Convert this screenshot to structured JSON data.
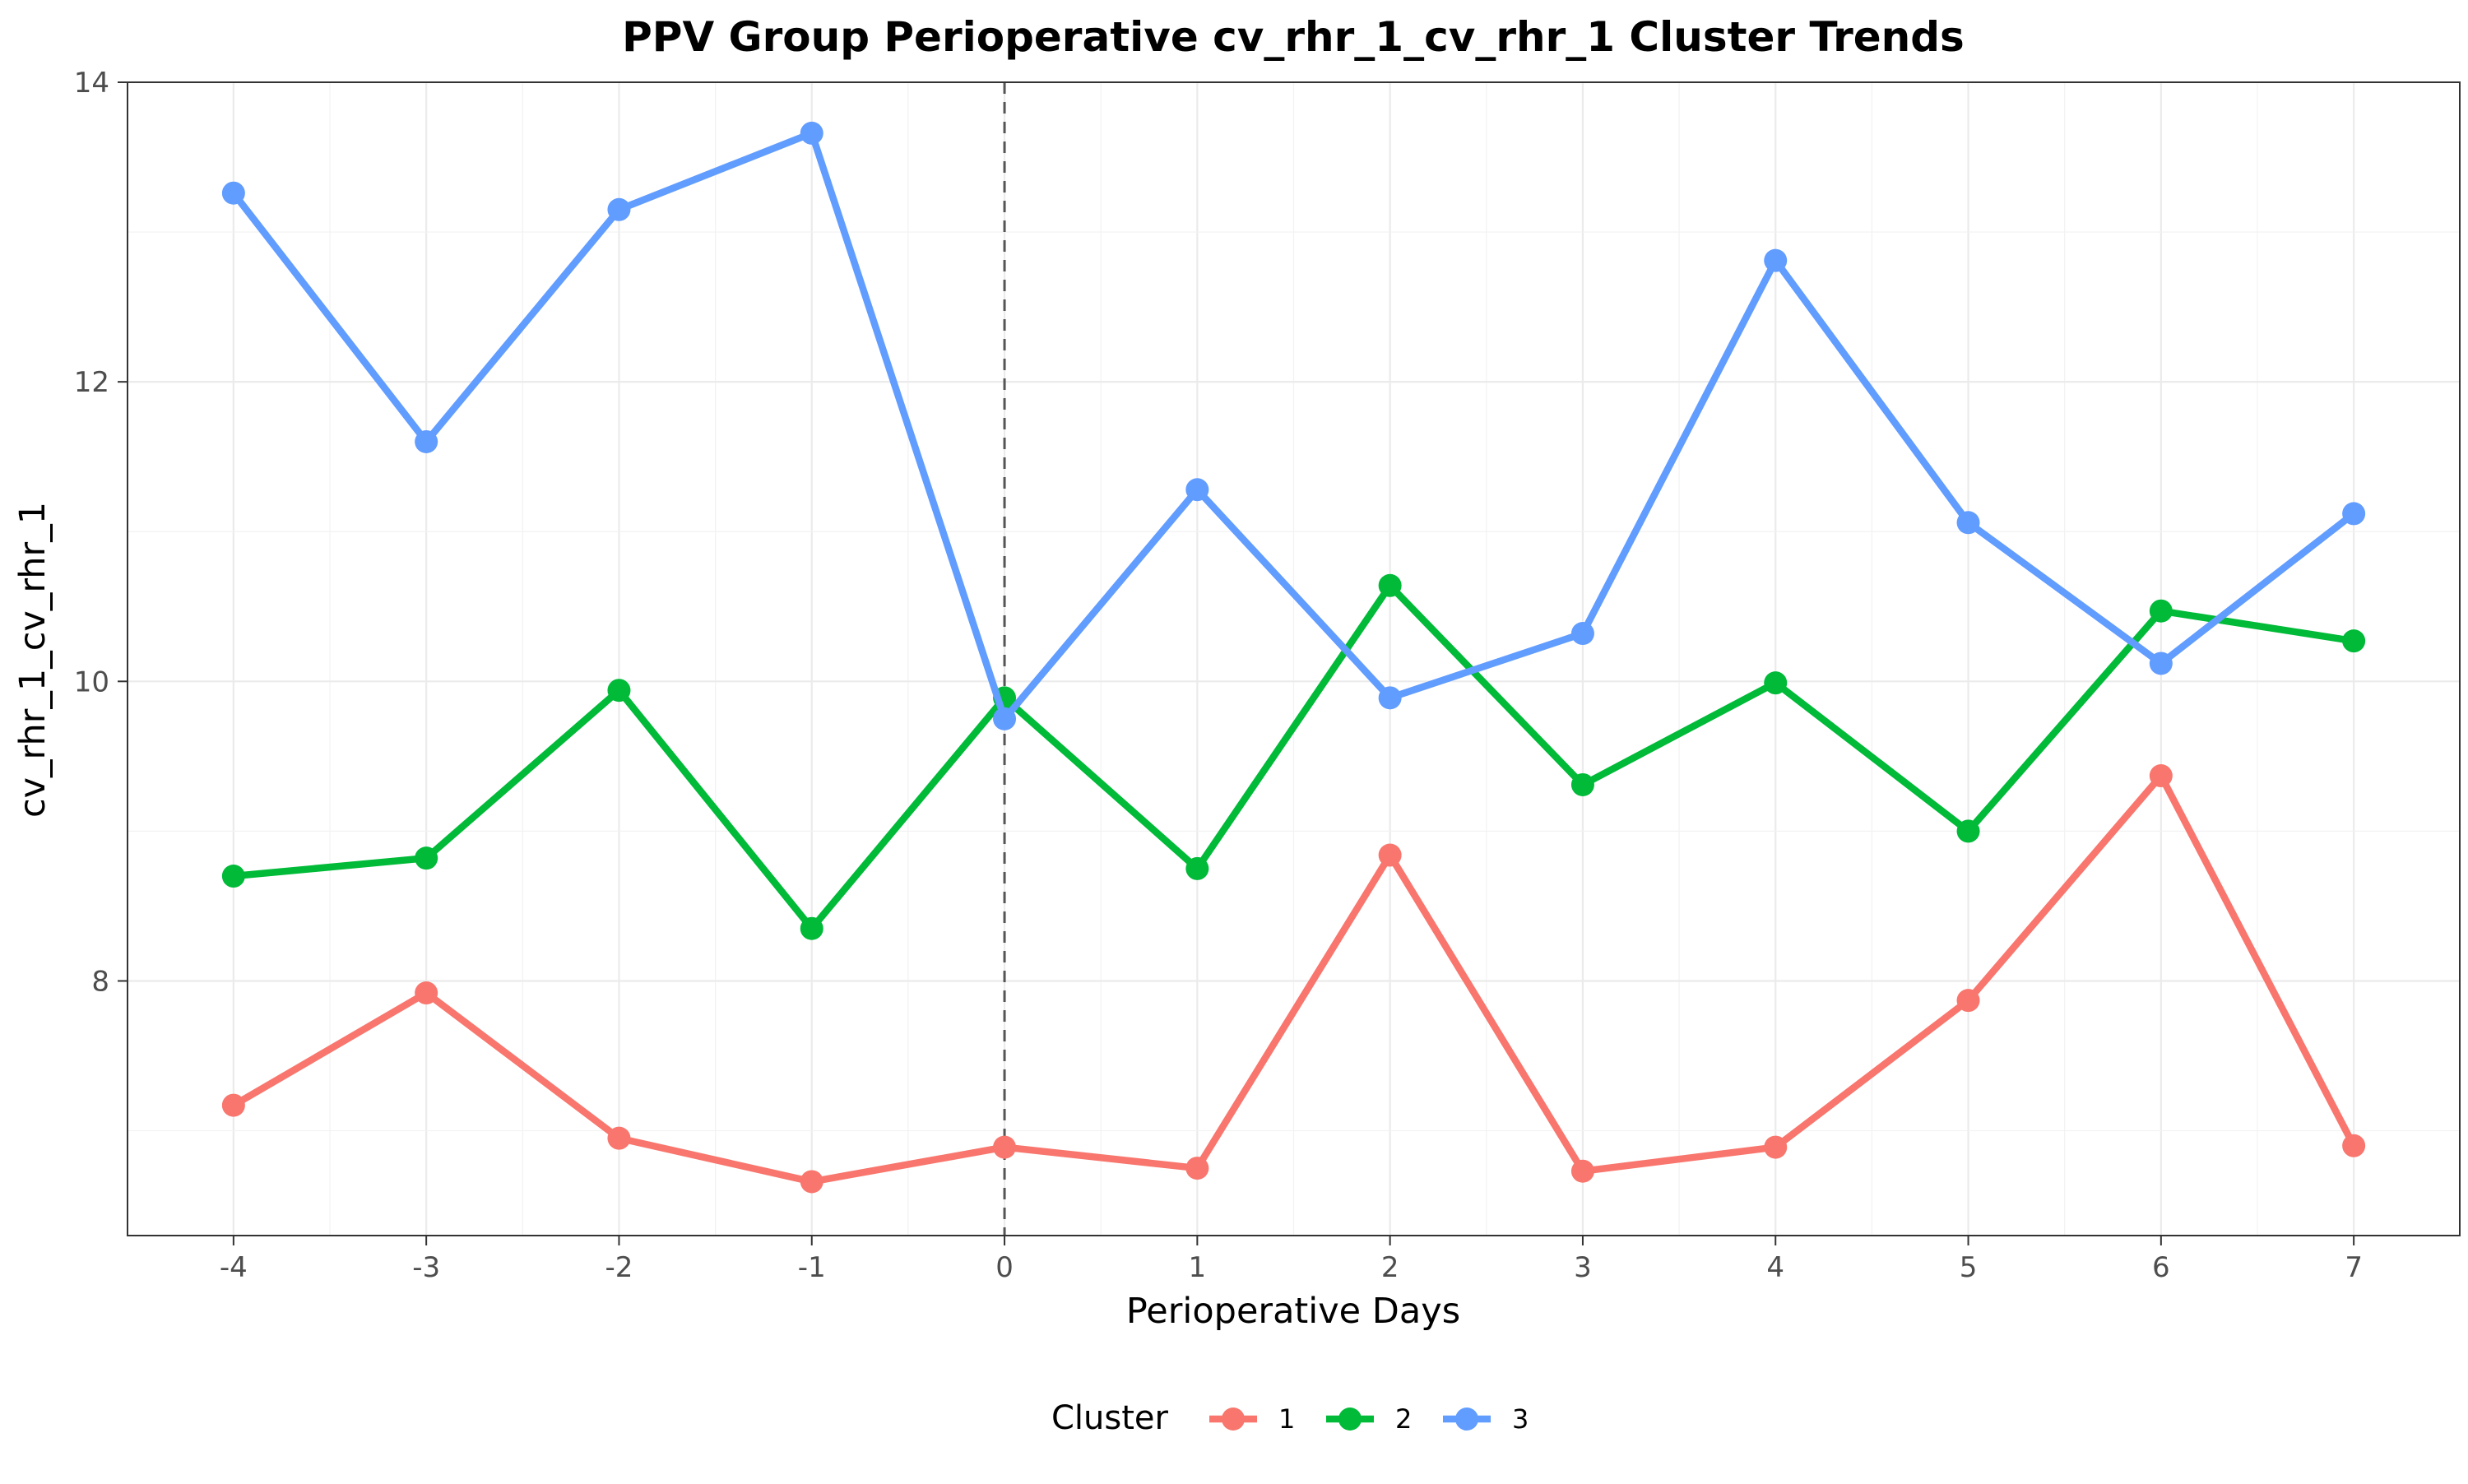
{
  "chart_data": {
    "type": "line",
    "title": "PPV Group Perioperative cv_rhr_1_cv_rhr_1 Cluster Trends",
    "xlabel": "Perioperative Days",
    "ylabel": "cv_rhr_1_cv_rhr_1",
    "x": [
      -4,
      -3,
      -2,
      -1,
      0,
      1,
      2,
      3,
      4,
      5,
      6,
      7
    ],
    "xticks": [
      "-4",
      "-3",
      "-2",
      "-1",
      "0",
      "1",
      "2",
      "3",
      "4",
      "5",
      "6",
      "7"
    ],
    "yticks": [
      "8",
      "10",
      "12",
      "14"
    ],
    "xlim": [
      -4.55,
      7.55
    ],
    "ylim": [
      6.3,
      14.0
    ],
    "grid": true,
    "reference_line": {
      "x": 0,
      "style": "dashed"
    },
    "legend": {
      "title": "Cluster",
      "position": "bottom"
    },
    "series": [
      {
        "name": "1",
        "color": "#F8766D",
        "values": [
          7.17,
          7.92,
          6.95,
          6.66,
          6.89,
          6.75,
          8.84,
          6.73,
          6.89,
          7.87,
          9.37,
          6.9
        ]
      },
      {
        "name": "2",
        "color": "#00BA38",
        "values": [
          8.7,
          8.82,
          9.94,
          8.35,
          9.89,
          8.75,
          10.64,
          9.31,
          9.99,
          9.0,
          10.47,
          10.27
        ]
      },
      {
        "name": "3",
        "color": "#619CFF",
        "values": [
          13.26,
          11.6,
          13.15,
          13.66,
          9.75,
          11.28,
          9.89,
          10.32,
          12.81,
          11.06,
          10.12,
          11.12
        ]
      }
    ]
  }
}
